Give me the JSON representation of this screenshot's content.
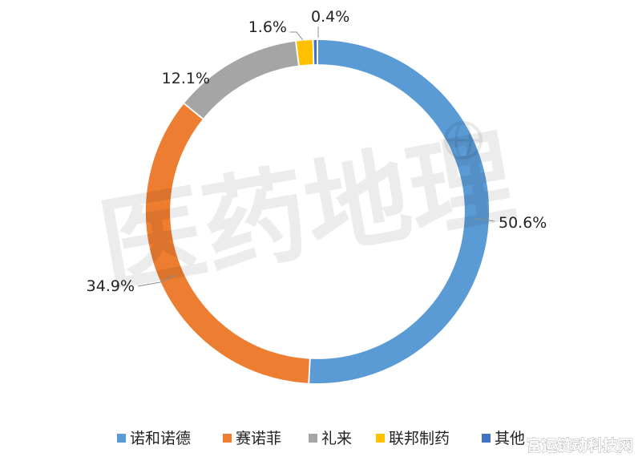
{
  "chart_data": {
    "type": "pie",
    "style": "donut",
    "title": "",
    "categories": [
      "诺和诺德",
      "赛诺菲",
      "礼来",
      "联邦制药",
      "其他"
    ],
    "values": [
      50.6,
      34.9,
      12.1,
      1.6,
      0.4
    ],
    "labels": [
      "50.6%",
      "34.9%",
      "12.1%",
      "1.6%",
      "0.4%"
    ],
    "colors": [
      "#5B9BD5",
      "#ED7D31",
      "#A5A5A5",
      "#FFC000",
      "#4472C4"
    ],
    "start_angle_deg": 0,
    "direction": "clockwise",
    "legend": "bottom"
  },
  "watermark": {
    "text": "医药地理",
    "logo": "globe-icon"
  },
  "corner_watermark": "富运链动科技网"
}
